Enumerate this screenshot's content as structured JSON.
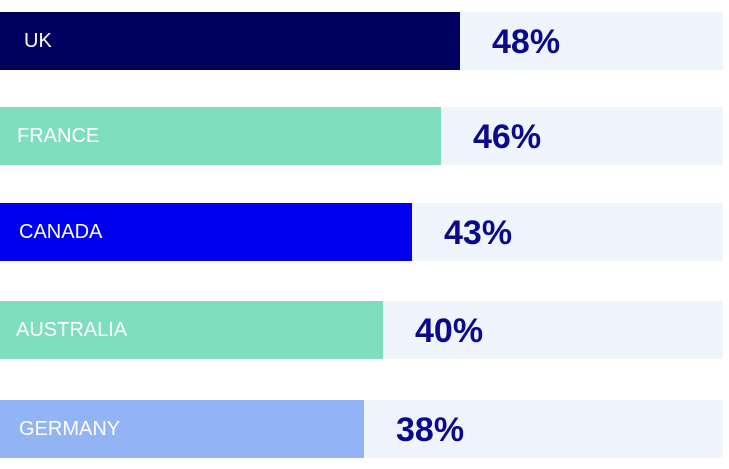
{
  "chart_data": {
    "type": "bar",
    "orientation": "horizontal",
    "categories": [
      "UK",
      "FRANCE",
      "CANADA",
      "AUSTRALIA",
      "GERMANY"
    ],
    "values": [
      48,
      46,
      43,
      40,
      38
    ],
    "value_labels": [
      "48%",
      "46%",
      "43%",
      "40%",
      "38%"
    ],
    "colors": [
      "#00005e",
      "#7fdebe",
      "#0000f0",
      "#7fdebe",
      "#93b4f4"
    ],
    "track_color": "#f0f4fc",
    "value_color": "#0a0a8c",
    "label_color": "#ffffff",
    "unit": "%",
    "title": "",
    "xlabel": "",
    "ylabel": "",
    "grid": false,
    "legend": "none"
  }
}
